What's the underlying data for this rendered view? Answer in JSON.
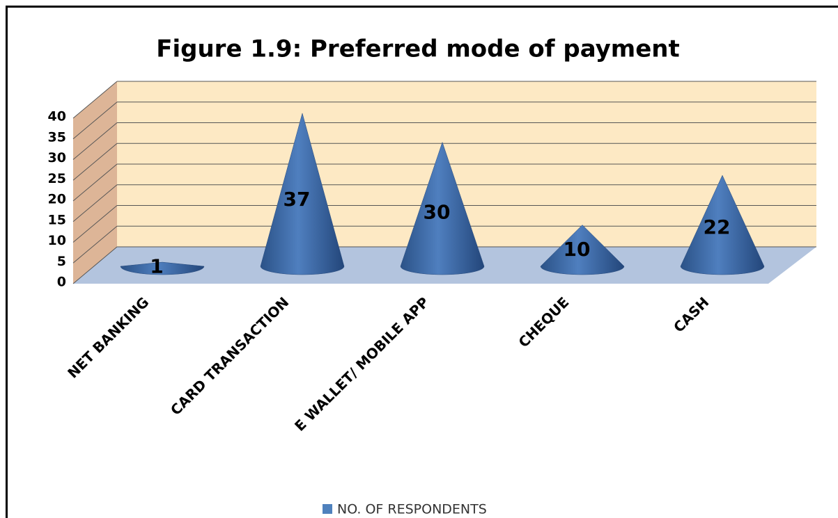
{
  "chart_data": {
    "type": "cone",
    "title": "Figure 1.9: Preferred mode of payment",
    "categories": [
      "NET BANKING",
      "CARD TRANSACTION",
      "E WALLET/ MOBILE APP",
      "CHEQUE",
      "CASH"
    ],
    "series": [
      {
        "name": "NO. OF RESPONDENTS",
        "color": "#4f81bd",
        "values": [
          1,
          37,
          30,
          10,
          22
        ]
      }
    ],
    "ylim": [
      0,
      40
    ],
    "yticks": [
      0,
      5,
      10,
      15,
      20,
      25,
      30,
      35,
      40
    ],
    "grid": true,
    "legend": "bottom"
  }
}
